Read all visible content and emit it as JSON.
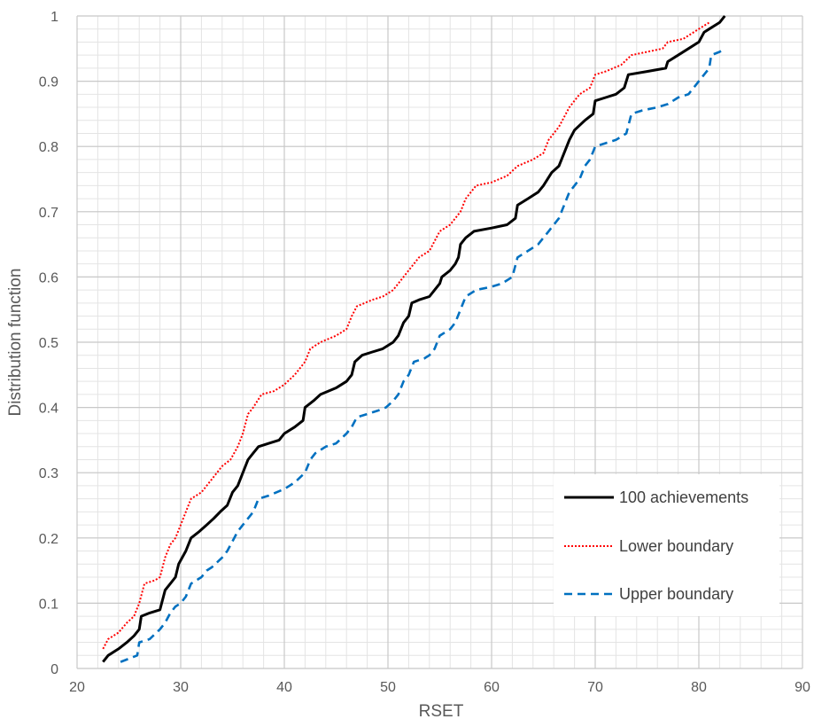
{
  "chart_data": {
    "type": "line",
    "xlabel": "RSET",
    "ylabel": "Distribution function",
    "xlim": [
      20,
      90
    ],
    "ylim": [
      0,
      1
    ],
    "x_ticks": [
      "20",
      "30",
      "40",
      "50",
      "60",
      "70",
      "80",
      "90"
    ],
    "y_ticks": [
      "0",
      "0.1",
      "0.2",
      "0.3",
      "0.4",
      "0.5",
      "0.6",
      "0.7",
      "0.8",
      "0.9",
      "1"
    ],
    "grid": true,
    "legend_position": "bottom-right",
    "series": [
      {
        "name": "100 achievements",
        "color": "#000000",
        "dash": "solid",
        "points": [
          [
            22.5,
            0.01
          ],
          [
            23.0,
            0.02
          ],
          [
            24.0,
            0.03
          ],
          [
            24.8,
            0.04
          ],
          [
            25.5,
            0.05
          ],
          [
            26.0,
            0.06
          ],
          [
            26.2,
            0.08
          ],
          [
            27.0,
            0.085
          ],
          [
            28.0,
            0.09
          ],
          [
            28.5,
            0.12
          ],
          [
            29.0,
            0.13
          ],
          [
            29.5,
            0.14
          ],
          [
            29.8,
            0.16
          ],
          [
            30.5,
            0.18
          ],
          [
            31.0,
            0.2
          ],
          [
            31.8,
            0.21
          ],
          [
            32.5,
            0.22
          ],
          [
            33.2,
            0.23
          ],
          [
            33.8,
            0.24
          ],
          [
            34.5,
            0.25
          ],
          [
            35.0,
            0.27
          ],
          [
            35.5,
            0.28
          ],
          [
            36.0,
            0.3
          ],
          [
            36.5,
            0.32
          ],
          [
            37.0,
            0.33
          ],
          [
            37.5,
            0.34
          ],
          [
            38.5,
            0.345
          ],
          [
            39.5,
            0.35
          ],
          [
            40.0,
            0.36
          ],
          [
            41.0,
            0.37
          ],
          [
            41.8,
            0.38
          ],
          [
            42.0,
            0.4
          ],
          [
            42.8,
            0.41
          ],
          [
            43.5,
            0.42
          ],
          [
            45.0,
            0.43
          ],
          [
            46.0,
            0.44
          ],
          [
            46.5,
            0.45
          ],
          [
            46.8,
            0.47
          ],
          [
            47.5,
            0.48
          ],
          [
            48.5,
            0.485
          ],
          [
            49.5,
            0.49
          ],
          [
            50.5,
            0.5
          ],
          [
            51.0,
            0.51
          ],
          [
            51.5,
            0.53
          ],
          [
            52.0,
            0.54
          ],
          [
            52.3,
            0.56
          ],
          [
            53.0,
            0.565
          ],
          [
            54.0,
            0.57
          ],
          [
            54.5,
            0.58
          ],
          [
            55.0,
            0.59
          ],
          [
            55.2,
            0.6
          ],
          [
            56.0,
            0.61
          ],
          [
            56.5,
            0.62
          ],
          [
            56.8,
            0.63
          ],
          [
            57.0,
            0.65
          ],
          [
            57.5,
            0.66
          ],
          [
            58.3,
            0.67
          ],
          [
            60.0,
            0.675
          ],
          [
            61.5,
            0.68
          ],
          [
            62.3,
            0.69
          ],
          [
            62.5,
            0.71
          ],
          [
            63.5,
            0.72
          ],
          [
            64.5,
            0.73
          ],
          [
            65.0,
            0.74
          ],
          [
            65.8,
            0.76
          ],
          [
            66.5,
            0.77
          ],
          [
            67.0,
            0.79
          ],
          [
            67.5,
            0.81
          ],
          [
            68.0,
            0.825
          ],
          [
            69.0,
            0.84
          ],
          [
            69.8,
            0.85
          ],
          [
            70.0,
            0.87
          ],
          [
            71.0,
            0.875
          ],
          [
            72.0,
            0.88
          ],
          [
            72.8,
            0.89
          ],
          [
            73.2,
            0.91
          ],
          [
            75.0,
            0.915
          ],
          [
            76.8,
            0.92
          ],
          [
            77.0,
            0.93
          ],
          [
            78.0,
            0.94
          ],
          [
            79.0,
            0.95
          ],
          [
            80.0,
            0.96
          ],
          [
            80.5,
            0.975
          ],
          [
            81.0,
            0.98
          ],
          [
            82.0,
            0.99
          ],
          [
            82.5,
            1.0
          ]
        ]
      },
      {
        "name": "Lower boundary",
        "color": "#ff0000",
        "dash": "dotted",
        "points": [
          [
            22.5,
            0.03
          ],
          [
            23.0,
            0.045
          ],
          [
            24.0,
            0.055
          ],
          [
            24.8,
            0.07
          ],
          [
            25.5,
            0.08
          ],
          [
            26.0,
            0.1
          ],
          [
            26.5,
            0.13
          ],
          [
            27.5,
            0.135
          ],
          [
            28.0,
            0.14
          ],
          [
            28.5,
            0.17
          ],
          [
            29.0,
            0.19
          ],
          [
            29.5,
            0.2
          ],
          [
            30.0,
            0.22
          ],
          [
            30.5,
            0.24
          ],
          [
            31.0,
            0.26
          ],
          [
            32.0,
            0.27
          ],
          [
            32.5,
            0.28
          ],
          [
            33.0,
            0.29
          ],
          [
            34.0,
            0.31
          ],
          [
            34.8,
            0.32
          ],
          [
            35.5,
            0.34
          ],
          [
            36.0,
            0.36
          ],
          [
            36.5,
            0.39
          ],
          [
            37.0,
            0.4
          ],
          [
            37.8,
            0.42
          ],
          [
            39.0,
            0.425
          ],
          [
            40.0,
            0.435
          ],
          [
            41.0,
            0.45
          ],
          [
            42.0,
            0.47
          ],
          [
            42.5,
            0.49
          ],
          [
            43.5,
            0.5
          ],
          [
            45.0,
            0.51
          ],
          [
            46.0,
            0.52
          ],
          [
            46.5,
            0.54
          ],
          [
            47.0,
            0.555
          ],
          [
            48.5,
            0.565
          ],
          [
            49.5,
            0.57
          ],
          [
            50.5,
            0.58
          ],
          [
            51.0,
            0.59
          ],
          [
            52.0,
            0.61
          ],
          [
            53.0,
            0.63
          ],
          [
            54.0,
            0.64
          ],
          [
            55.0,
            0.67
          ],
          [
            56.0,
            0.68
          ],
          [
            57.0,
            0.7
          ],
          [
            57.5,
            0.72
          ],
          [
            58.5,
            0.74
          ],
          [
            60.0,
            0.745
          ],
          [
            61.5,
            0.755
          ],
          [
            62.5,
            0.77
          ],
          [
            64.0,
            0.78
          ],
          [
            65.0,
            0.79
          ],
          [
            65.5,
            0.81
          ],
          [
            66.5,
            0.83
          ],
          [
            67.5,
            0.86
          ],
          [
            68.5,
            0.88
          ],
          [
            69.5,
            0.89
          ],
          [
            70.0,
            0.91
          ],
          [
            71.0,
            0.915
          ],
          [
            72.5,
            0.925
          ],
          [
            73.5,
            0.94
          ],
          [
            75.0,
            0.945
          ],
          [
            76.5,
            0.95
          ],
          [
            77.0,
            0.96
          ],
          [
            78.5,
            0.965
          ],
          [
            79.5,
            0.975
          ],
          [
            80.5,
            0.985
          ],
          [
            81.0,
            0.99
          ]
        ]
      },
      {
        "name": "Upper boundary",
        "color": "#0070c0",
        "dash": "dashed",
        "points": [
          [
            24.2,
            0.01
          ],
          [
            25.0,
            0.015
          ],
          [
            25.8,
            0.02
          ],
          [
            26.0,
            0.04
          ],
          [
            27.0,
            0.045
          ],
          [
            28.0,
            0.06
          ],
          [
            28.5,
            0.07
          ],
          [
            29.0,
            0.085
          ],
          [
            29.5,
            0.095
          ],
          [
            30.0,
            0.1
          ],
          [
            30.5,
            0.11
          ],
          [
            31.0,
            0.13
          ],
          [
            32.0,
            0.14
          ],
          [
            32.5,
            0.15
          ],
          [
            33.0,
            0.155
          ],
          [
            34.0,
            0.17
          ],
          [
            34.5,
            0.18
          ],
          [
            35.0,
            0.195
          ],
          [
            35.5,
            0.21
          ],
          [
            36.0,
            0.22
          ],
          [
            37.0,
            0.24
          ],
          [
            37.5,
            0.26
          ],
          [
            38.5,
            0.265
          ],
          [
            40.0,
            0.275
          ],
          [
            41.0,
            0.285
          ],
          [
            42.0,
            0.3
          ],
          [
            42.5,
            0.32
          ],
          [
            43.0,
            0.33
          ],
          [
            44.0,
            0.34
          ],
          [
            45.0,
            0.345
          ],
          [
            46.0,
            0.36
          ],
          [
            46.5,
            0.37
          ],
          [
            47.0,
            0.385
          ],
          [
            48.0,
            0.39
          ],
          [
            49.0,
            0.395
          ],
          [
            49.8,
            0.4
          ],
          [
            50.5,
            0.41
          ],
          [
            51.0,
            0.42
          ],
          [
            51.5,
            0.44
          ],
          [
            52.0,
            0.45
          ],
          [
            52.5,
            0.47
          ],
          [
            53.5,
            0.475
          ],
          [
            54.0,
            0.48
          ],
          [
            54.5,
            0.49
          ],
          [
            55.0,
            0.51
          ],
          [
            56.0,
            0.52
          ],
          [
            56.5,
            0.53
          ],
          [
            57.0,
            0.55
          ],
          [
            57.5,
            0.57
          ],
          [
            58.5,
            0.58
          ],
          [
            60.0,
            0.585
          ],
          [
            61.0,
            0.59
          ],
          [
            62.0,
            0.6
          ],
          [
            62.5,
            0.63
          ],
          [
            63.5,
            0.64
          ],
          [
            64.5,
            0.65
          ],
          [
            65.5,
            0.67
          ],
          [
            66.5,
            0.69
          ],
          [
            67.0,
            0.71
          ],
          [
            67.5,
            0.73
          ],
          [
            68.5,
            0.75
          ],
          [
            69.0,
            0.77
          ],
          [
            69.5,
            0.78
          ],
          [
            70.0,
            0.8
          ],
          [
            71.0,
            0.805
          ],
          [
            72.0,
            0.81
          ],
          [
            73.0,
            0.82
          ],
          [
            73.5,
            0.85
          ],
          [
            74.5,
            0.855
          ],
          [
            76.0,
            0.86
          ],
          [
            77.0,
            0.865
          ],
          [
            78.0,
            0.875
          ],
          [
            79.0,
            0.88
          ],
          [
            79.5,
            0.89
          ],
          [
            80.0,
            0.9
          ],
          [
            80.5,
            0.91
          ],
          [
            81.0,
            0.92
          ],
          [
            81.2,
            0.94
          ],
          [
            82.0,
            0.945
          ],
          [
            82.5,
            0.95
          ]
        ]
      }
    ]
  }
}
